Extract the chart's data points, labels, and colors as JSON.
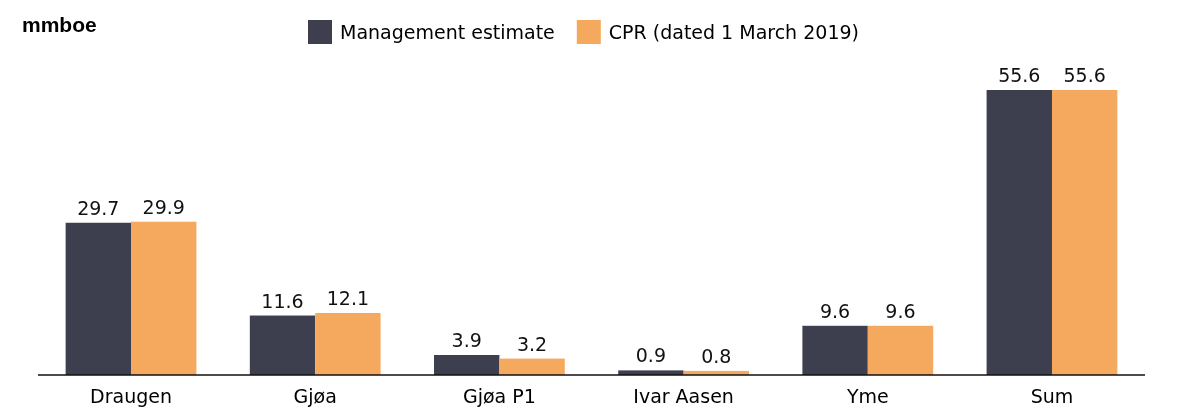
{
  "chart_data": {
    "type": "bar",
    "title": "mmboe",
    "categories": [
      "Draugen",
      "Gjøa",
      "Gjøa P1",
      "Ivar Aasen",
      "Yme",
      "Sum"
    ],
    "series": [
      {
        "name": "Management estimate",
        "color": "#3d3f4f",
        "values": [
          29.7,
          11.6,
          3.9,
          0.9,
          9.6,
          55.6
        ]
      },
      {
        "name": "CPR (dated 1 March 2019)",
        "color": "#f5a95f",
        "values": [
          29.9,
          12.1,
          3.2,
          0.8,
          9.6,
          55.6
        ]
      }
    ],
    "data_labels": true,
    "legend": "top",
    "grid": false
  }
}
